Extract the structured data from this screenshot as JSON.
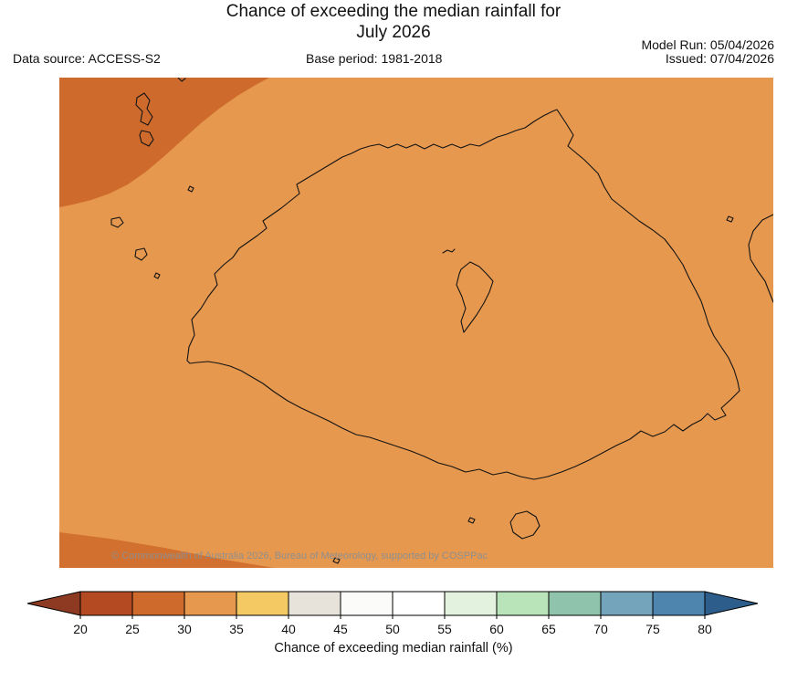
{
  "title": {
    "line1": "Chance of exceeding the median rainfall for",
    "line2": "July 2026"
  },
  "header": {
    "data_source": "Data source: ACCESS-S2",
    "base_period": "Base period: 1981-2018",
    "model_run": "Model Run: 05/04/2026",
    "issued": "Issued: 07/04/2026"
  },
  "map": {
    "copyright": "© Commonwealth of Australia 2026, Bureau of Meteorology, supported by COSPPac"
  },
  "colors": {
    "map_bg": "#E6984E",
    "map_region_dark": "#CE6B2C"
  },
  "legend": {
    "title": "Chance of exceeding median rainfall (%)",
    "tick_labels": [
      "20",
      "25",
      "30",
      "35",
      "40",
      "45",
      "50",
      "55",
      "60",
      "65",
      "70",
      "75",
      "80"
    ],
    "below_range_color": "#8E3A22",
    "above_range_color": "#2D5D8B",
    "segment_colors": [
      "#B34A22",
      "#CE6B2C",
      "#E6984E",
      "#F4C863",
      "#E7E3DB",
      "#FBFBF9",
      "#FFFFFF",
      "#E2F2DE",
      "#B9E3B9",
      "#90C3AB",
      "#74A4BC",
      "#4D85AF"
    ]
  }
}
